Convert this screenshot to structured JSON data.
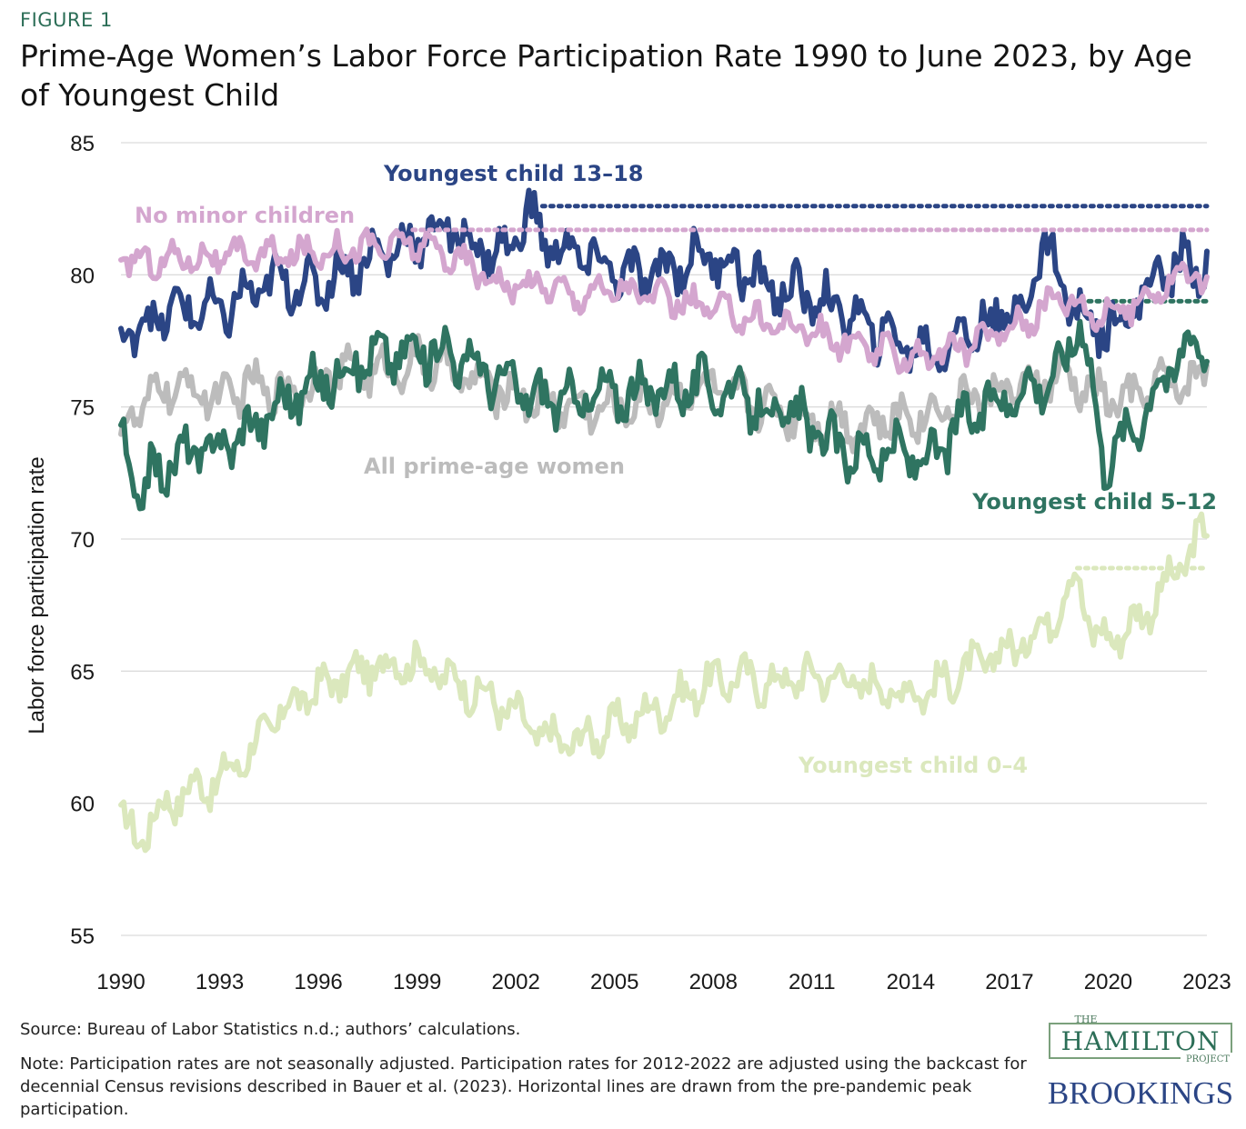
{
  "figure_label": "FIGURE 1",
  "title": "Prime-Age Women’s Labor Force Participation Rate 1990 to June 2023, by Age of Youngest Child",
  "source": "Source: Bureau of Labor Statistics n.d.; authors’ calculations.",
  "note": "Note: Participation rates are not seasonally adjusted. Participation rates for 2012-2022 are adjusted using the backcast for decennial Census revisions described in Bauer et al. (2023).  Horizontal lines are drawn from the pre-pandemic peak participation.",
  "logo": {
    "the": "THE",
    "hamilton": "HAMILTON",
    "project": "PROJECT",
    "brookings": "BROOKINGS"
  },
  "colors": {
    "teen": "#2b4585",
    "nominor": "#d4a6cf",
    "all": "#bcbcbc",
    "school": "#2f7461",
    "young": "#dbe8bd"
  },
  "chart_data": {
    "type": "line",
    "xlabel": "",
    "ylabel": "Labor force participation rate",
    "xlim": [
      1990,
      2023.5
    ],
    "ylim": [
      55,
      85
    ],
    "x_ticks": [
      "1990",
      "1993",
      "1996",
      "1999",
      "2002",
      "2005",
      "2008",
      "2011",
      "2014",
      "2017",
      "2020",
      "2023"
    ],
    "y_ticks": [
      55,
      60,
      65,
      70,
      75,
      80,
      85
    ],
    "grid": true,
    "series": [
      {
        "name": "Youngest child 13–18",
        "color_key": "teen",
        "x": [
          1990,
          1991,
          1992,
          1993,
          1994,
          1995,
          1996,
          1997,
          1998,
          1999,
          2000,
          2001,
          2002,
          2002.5,
          2003,
          2004,
          2005,
          2006,
          2007,
          2008,
          2009,
          2010,
          2011,
          2012,
          2013,
          2014,
          2015,
          2016,
          2017,
          2018,
          2018.5,
          2019,
          2020,
          2021,
          2022,
          2023,
          2023.5
        ],
        "y": [
          77.8,
          78.3,
          78.8,
          78.5,
          79.3,
          79.8,
          79.5,
          80.3,
          80.8,
          81.3,
          81.8,
          81.0,
          80.8,
          82.6,
          81.3,
          80.8,
          80.3,
          79.8,
          80.3,
          80.8,
          80.3,
          79.5,
          79.3,
          78.8,
          78.0,
          77.5,
          77.0,
          77.8,
          78.3,
          79.0,
          81.5,
          79.5,
          78.0,
          78.5,
          80.0,
          80.5,
          80.3
        ],
        "peak_line": {
          "from": 2003,
          "to": 2023.5,
          "value": 82.6
        }
      },
      {
        "name": "No minor children",
        "color_key": "nominor",
        "x": [
          1990,
          1991,
          1992,
          1993,
          1994,
          1995,
          1996,
          1997,
          1998,
          1999,
          2000,
          2001,
          2002,
          2003,
          2004,
          2005,
          2006,
          2007,
          2008,
          2009,
          2010,
          2011,
          2012,
          2013,
          2014,
          2015,
          2016,
          2017,
          2018,
          2019,
          2020,
          2021,
          2022,
          2023,
          2023.5
        ],
        "y": [
          80.6,
          80.5,
          80.7,
          80.6,
          80.8,
          80.7,
          80.9,
          81.0,
          81.1,
          81.2,
          80.8,
          80.2,
          79.5,
          79.7,
          79.2,
          79.5,
          79.3,
          79.0,
          78.8,
          78.5,
          78.2,
          78.0,
          77.5,
          77.2,
          77.0,
          76.9,
          77.3,
          77.8,
          78.3,
          79.3,
          78.5,
          78.7,
          79.5,
          80.2,
          79.6
        ],
        "peak_line": {
          "from": 1999,
          "to": 2023.5,
          "value": 81.7
        }
      },
      {
        "name": "All prime-age women",
        "color_key": "all",
        "x": [
          1990,
          1991,
          1992,
          1993,
          1994,
          1995,
          1996,
          1997,
          1998,
          1999,
          2000,
          2001,
          2002,
          2003,
          2004,
          2005,
          2006,
          2007,
          2008,
          2009,
          2010,
          2011,
          2012,
          2013,
          2014,
          2015,
          2016,
          2017,
          2018,
          2019,
          2020,
          2021,
          2022,
          2023,
          2023.5
        ],
        "y": [
          74.0,
          75.5,
          75.8,
          75.3,
          75.8,
          75.6,
          75.9,
          76.5,
          76.3,
          76.7,
          76.5,
          75.9,
          75.5,
          75.2,
          75.0,
          74.9,
          75.1,
          75.4,
          75.7,
          75.4,
          75.0,
          74.6,
          74.5,
          74.3,
          74.6,
          74.8,
          75.3,
          75.6,
          75.7,
          76.2,
          75.5,
          75.2,
          75.9,
          75.8,
          76.6
        ]
      },
      {
        "name": "Youngest child 5–12",
        "color_key": "school",
        "x": [
          1990,
          1990.5,
          1991,
          1992,
          1993,
          1994,
          1995,
          1996,
          1997,
          1998,
          1999,
          2000,
          2001,
          2002,
          2003,
          2004,
          2005,
          2006,
          2007,
          2008,
          2009,
          2010,
          2011,
          2012,
          2013,
          2014,
          2015,
          2016,
          2017,
          2018,
          2019,
          2019.6,
          2020.3,
          2021,
          2022,
          2023,
          2023.5
        ],
        "y": [
          74.0,
          71.5,
          72.5,
          73.2,
          73.5,
          74.2,
          75.2,
          75.8,
          76.5,
          77.0,
          77.0,
          77.2,
          76.5,
          75.8,
          75.3,
          75.3,
          75.5,
          75.5,
          75.8,
          75.8,
          75.5,
          74.8,
          74.5,
          73.5,
          73.2,
          73.3,
          73.0,
          74.5,
          75.2,
          75.8,
          76.3,
          78.6,
          73.0,
          73.8,
          75.8,
          77.5,
          77.4
        ],
        "peak_line": {
          "from": 2019.6,
          "to": 2023.5,
          "value": 79.0
        }
      },
      {
        "name": "Youngest child 0–4",
        "color_key": "young",
        "x": [
          1990,
          1990.5,
          1991,
          1992,
          1993,
          1994,
          1995,
          1996,
          1997,
          1998,
          1999,
          2000,
          2001,
          2002,
          2003,
          2004,
          2005,
          2006,
          2007,
          2008,
          2009,
          2010,
          2011,
          2012,
          2013,
          2014,
          2015,
          2016,
          2017,
          2018,
          2019,
          2019.5,
          2020,
          2021,
          2022,
          2023,
          2023.5
        ],
        "y": [
          59.5,
          58.5,
          59.5,
          60.5,
          60.8,
          62.0,
          63.5,
          64.3,
          64.8,
          65.2,
          65.4,
          64.8,
          64.2,
          63.5,
          62.5,
          62.3,
          62.8,
          63.3,
          63.8,
          64.5,
          64.8,
          64.5,
          64.8,
          64.8,
          64.5,
          64.2,
          64.3,
          65.0,
          65.6,
          66.2,
          67.5,
          68.8,
          66.2,
          66.5,
          67.8,
          69.5,
          70.4
        ],
        "peak_line": {
          "from": 2019.5,
          "to": 2023.5,
          "value": 68.9
        }
      }
    ]
  }
}
